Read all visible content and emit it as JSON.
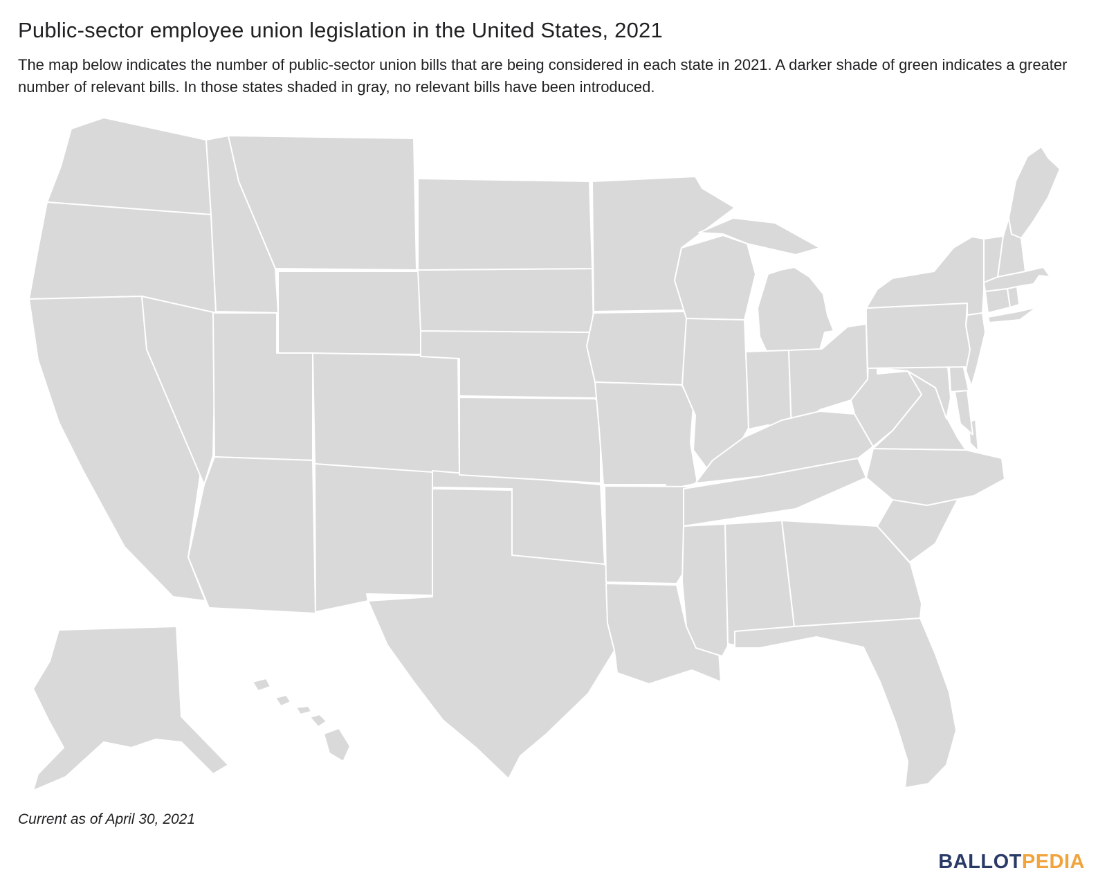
{
  "header": {
    "title": "Public-sector employee union legislation in the United States, 2021",
    "subtitle": "The map below indicates the number of public-sector union bills that are being considered in each state in 2021. A darker shade of green indicates a greater number of relevant bills. In those states shaded in gray, no relevant bills have been introduced."
  },
  "footer": {
    "note": "Current as of April 30, 2021",
    "brand": {
      "ballot": "BALLOT",
      "pedia": "PEDIA",
      "ballot_color": "#2a3a67",
      "pedia_color": "#f1a33c"
    }
  },
  "map": {
    "background": "#ffffff",
    "state_border_color": "#ffffff",
    "shade_scale": {
      "no_bills_gray": "#d9d9d9",
      "green_lightest": "#b7c3b1",
      "green_light": "#9db096",
      "green_light_medium": "#93a78c",
      "green_medium": "#75916d",
      "green_medium_dark": "#547f4d",
      "green_dark": "#47713f",
      "green_darker": "#36612f",
      "green_darkest": "#0f2d0c"
    },
    "states": [
      {
        "abbr": "AL",
        "name": "Alabama",
        "fill": "#d9d9d9"
      },
      {
        "abbr": "AK",
        "name": "Alaska",
        "fill": "#d9d9d9"
      },
      {
        "abbr": "AZ",
        "name": "Arizona",
        "fill": "#75916d"
      },
      {
        "abbr": "AR",
        "name": "Arkansas",
        "fill": "#9db096"
      },
      {
        "abbr": "CA",
        "name": "California",
        "fill": "#75916d"
      },
      {
        "abbr": "CO",
        "name": "Colorado",
        "fill": "#9db096"
      },
      {
        "abbr": "CT",
        "name": "Connecticut",
        "fill": "#d9d9d9"
      },
      {
        "abbr": "DE",
        "name": "Delaware",
        "fill": "#d9d9d9"
      },
      {
        "abbr": "FL",
        "name": "Florida",
        "fill": "#547f4d"
      },
      {
        "abbr": "GA",
        "name": "Georgia",
        "fill": "#d9d9d9"
      },
      {
        "abbr": "HI",
        "name": "Hawaii",
        "fill": "#75916d"
      },
      {
        "abbr": "ID",
        "name": "Idaho",
        "fill": "#9db096"
      },
      {
        "abbr": "IL",
        "name": "Illinois",
        "fill": "#47713f"
      },
      {
        "abbr": "IN",
        "name": "Indiana",
        "fill": "#75916d"
      },
      {
        "abbr": "IA",
        "name": "Iowa",
        "fill": "#47713f"
      },
      {
        "abbr": "KS",
        "name": "Kansas",
        "fill": "#9db096"
      },
      {
        "abbr": "KY",
        "name": "Kentucky",
        "fill": "#547f4d"
      },
      {
        "abbr": "LA",
        "name": "Louisiana",
        "fill": "#d9d9d9"
      },
      {
        "abbr": "ME",
        "name": "Maine",
        "fill": "#547f4d"
      },
      {
        "abbr": "MD",
        "name": "Maryland",
        "fill": "#0f2d0c"
      },
      {
        "abbr": "MA",
        "name": "Massachusetts",
        "fill": "#75916d"
      },
      {
        "abbr": "MI",
        "name": "Michigan",
        "fill": "#b7c3b1"
      },
      {
        "abbr": "MN",
        "name": "Minnesota",
        "fill": "#b7c3b1"
      },
      {
        "abbr": "MS",
        "name": "Mississippi",
        "fill": "#d9d9d9"
      },
      {
        "abbr": "MO",
        "name": "Missouri",
        "fill": "#75916d"
      },
      {
        "abbr": "MT",
        "name": "Montana",
        "fill": "#547f4d"
      },
      {
        "abbr": "NE",
        "name": "Nebraska",
        "fill": "#93a78c"
      },
      {
        "abbr": "NV",
        "name": "Nevada",
        "fill": "#75916d"
      },
      {
        "abbr": "NH",
        "name": "New Hampshire",
        "fill": "#75916d"
      },
      {
        "abbr": "NJ",
        "name": "New Jersey",
        "fill": "#75916d"
      },
      {
        "abbr": "NM",
        "name": "New Mexico",
        "fill": "#d9d9d9"
      },
      {
        "abbr": "NY",
        "name": "New York",
        "fill": "#75916d"
      },
      {
        "abbr": "NC",
        "name": "North Carolina",
        "fill": "#9db096"
      },
      {
        "abbr": "ND",
        "name": "North Dakota",
        "fill": "#d9d9d9"
      },
      {
        "abbr": "OH",
        "name": "Ohio",
        "fill": "#d9d9d9"
      },
      {
        "abbr": "OK",
        "name": "Oklahoma",
        "fill": "#547f4d"
      },
      {
        "abbr": "OR",
        "name": "Oregon",
        "fill": "#36612f"
      },
      {
        "abbr": "PA",
        "name": "Pennsylvania",
        "fill": "#75916d"
      },
      {
        "abbr": "RI",
        "name": "Rhode Island",
        "fill": "#d9d9d9"
      },
      {
        "abbr": "SC",
        "name": "South Carolina",
        "fill": "#d9d9d9"
      },
      {
        "abbr": "SD",
        "name": "South Dakota",
        "fill": "#d9d9d9"
      },
      {
        "abbr": "TN",
        "name": "Tennessee",
        "fill": "#547f4d"
      },
      {
        "abbr": "TX",
        "name": "Texas",
        "fill": "#d9d9d9"
      },
      {
        "abbr": "UT",
        "name": "Utah",
        "fill": "#d9d9d9"
      },
      {
        "abbr": "VT",
        "name": "Vermont",
        "fill": "#d9d9d9"
      },
      {
        "abbr": "VA",
        "name": "Virginia",
        "fill": "#dcdcdc"
      },
      {
        "abbr": "WA",
        "name": "Washington",
        "fill": "#9db096"
      },
      {
        "abbr": "WV",
        "name": "West Virginia",
        "fill": "#547f4d"
      },
      {
        "abbr": "WI",
        "name": "Wisconsin",
        "fill": "#9db096"
      },
      {
        "abbr": "WY",
        "name": "Wyoming",
        "fill": "#d9d9d9"
      }
    ]
  }
}
